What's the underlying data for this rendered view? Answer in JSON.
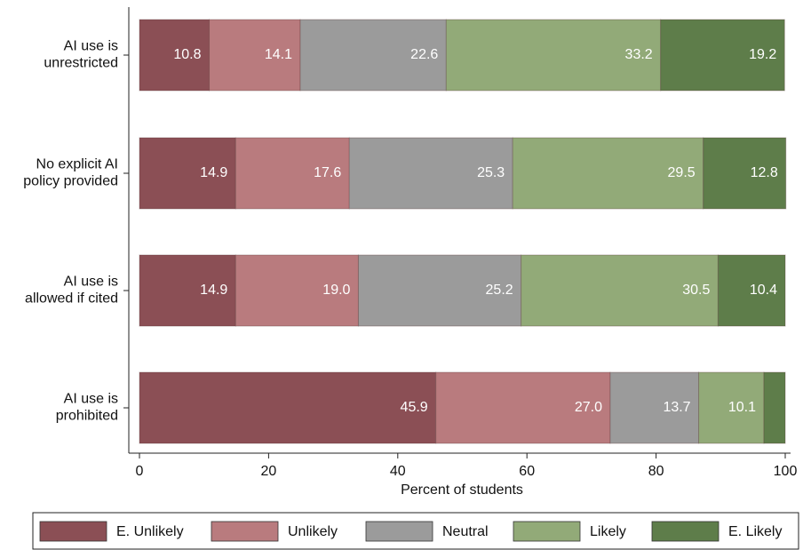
{
  "chart_data": {
    "type": "stacked-barh",
    "categories": [
      "AI use is\nunrestricted",
      "No explicit AI\npolicy provided",
      "AI use is\nallowed if cited",
      "AI use is\nprohibited"
    ],
    "series": [
      {
        "name": "E. Unlikely",
        "color": "#8b4f55",
        "values": [
          10.8,
          14.9,
          14.9,
          45.9
        ],
        "value_labels": [
          "10.8",
          "14.9",
          "14.9",
          "45.9"
        ]
      },
      {
        "name": "Unlikely",
        "color": "#b97b7e",
        "values": [
          14.1,
          17.6,
          19,
          27
        ],
        "value_labels": [
          "14.1",
          "17.6",
          "19.0",
          "27.0"
        ]
      },
      {
        "name": "Neutral",
        "color": "#9b9b9b",
        "values": [
          22.6,
          25.3,
          25.2,
          13.7
        ],
        "value_labels": [
          "22.6",
          "25.3",
          "25.2",
          "13.7"
        ]
      },
      {
        "name": "Likely",
        "color": "#92aa78",
        "values": [
          33.2,
          29.5,
          30.5,
          10.1
        ],
        "value_labels": [
          "33.2",
          "29.5",
          "30.5",
          "10.1"
        ]
      },
      {
        "name": "E. Likely",
        "color": "#5e7d4a",
        "values": [
          19.2,
          12.8,
          10.4,
          3.3
        ],
        "value_labels": [
          "19.2",
          "12.8",
          "10.4",
          null
        ]
      }
    ],
    "xlabel": "Percent of students",
    "xlim": [
      0,
      100
    ],
    "xticks": [
      0,
      20,
      40,
      60,
      80,
      100
    ],
    "legend": "bottom"
  }
}
